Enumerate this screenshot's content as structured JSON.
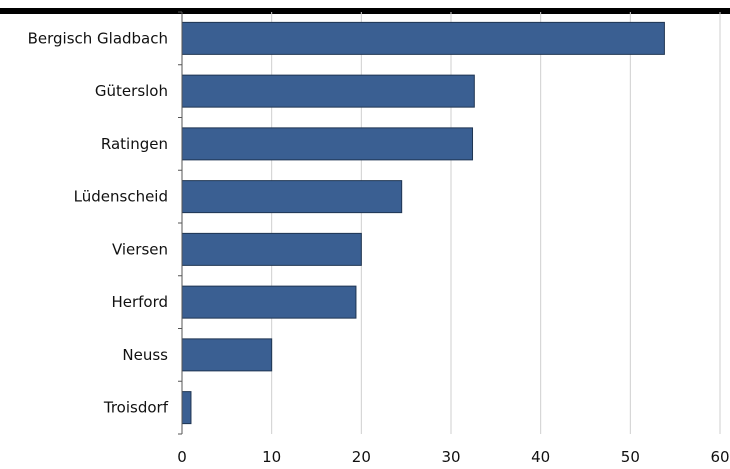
{
  "chart_data": {
    "type": "bar",
    "orientation": "horizontal",
    "categories": [
      "Bergisch Gladbach",
      "Gütersloh",
      "Ratingen",
      "Lüdenscheid",
      "Viersen",
      "Herford",
      "Neuss",
      "Troisdorf"
    ],
    "values": [
      53.8,
      32.6,
      32.4,
      24.5,
      20.0,
      19.4,
      10.0,
      1.0
    ],
    "x_ticks": [
      "0",
      "10",
      "20",
      "30",
      "40",
      "50",
      "60"
    ],
    "xlim": [
      0,
      60
    ],
    "grid": true,
    "bar_color": "#3a5f92",
    "top_rule_color": "#000000"
  }
}
